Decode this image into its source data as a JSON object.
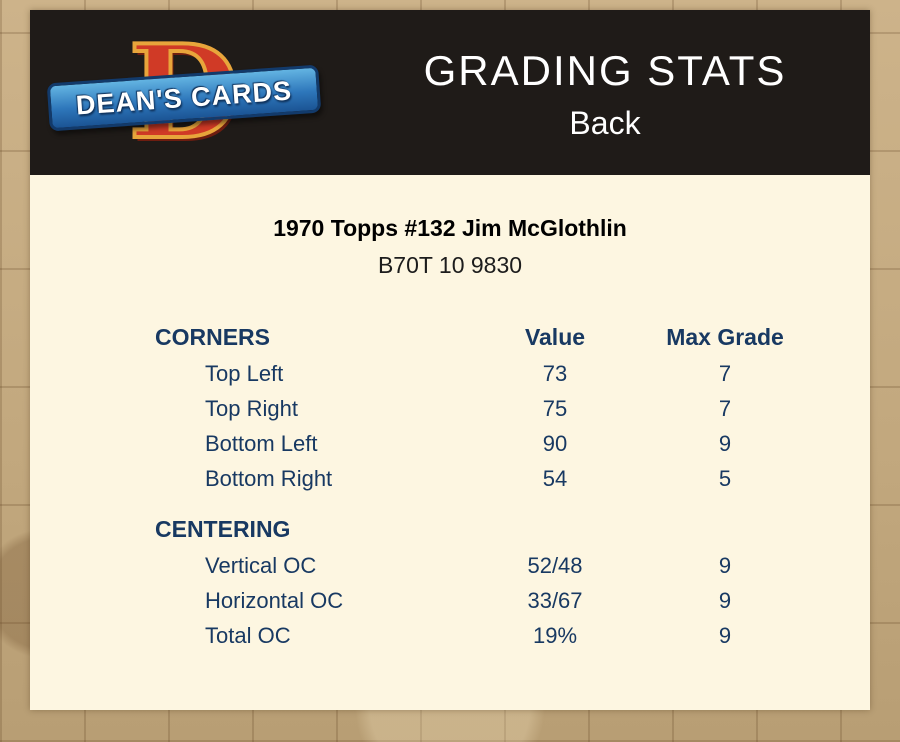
{
  "logo": {
    "letter": "D",
    "text": "DEAN'S CARDS"
  },
  "header": {
    "title": "GRADING STATS",
    "subtitle": "Back"
  },
  "card": {
    "title": "1970 Topps #132 Jim McGlothlin",
    "code": "B70T 10 9830"
  },
  "table": {
    "columns": {
      "value": "Value",
      "max_grade": "Max Grade"
    },
    "sections": [
      {
        "name": "CORNERS",
        "rows": [
          {
            "label": "Top Left",
            "value": "73",
            "max_grade": "7"
          },
          {
            "label": "Top Right",
            "value": "75",
            "max_grade": "7"
          },
          {
            "label": "Bottom Left",
            "value": "90",
            "max_grade": "9"
          },
          {
            "label": "Bottom Right",
            "value": "54",
            "max_grade": "5"
          }
        ]
      },
      {
        "name": "CENTERING",
        "rows": [
          {
            "label": "Vertical OC",
            "value": "52/48",
            "max_grade": "9"
          },
          {
            "label": "Horizontal OC",
            "value": "33/67",
            "max_grade": "9"
          },
          {
            "label": "Total OC",
            "value": "19%",
            "max_grade": "9"
          }
        ]
      }
    ]
  },
  "colors": {
    "header_bg": "#1f1b18",
    "panel_bg": "#fdf6e1",
    "outer_bg": "#c3a981",
    "table_navy": "#183962",
    "logo_red": "#d03a26",
    "logo_gold": "#e8a53b",
    "ribbon_blue": "#2e77bb"
  }
}
